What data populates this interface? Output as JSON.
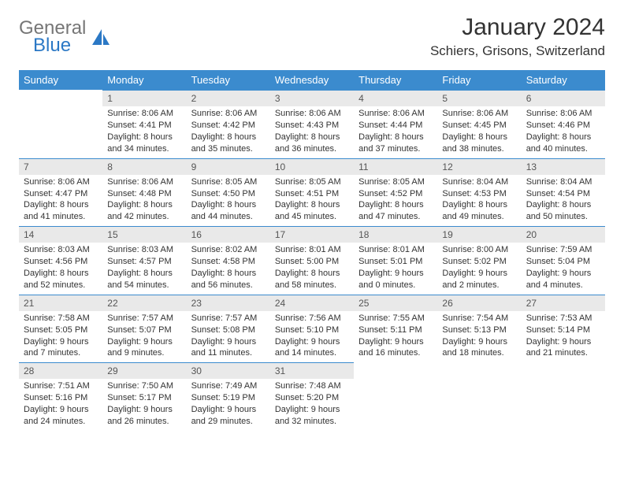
{
  "brand": {
    "word1": "General",
    "word2": "Blue",
    "word1_color": "#767676",
    "word2_color": "#2b78c5",
    "sail_color": "#2b78c5"
  },
  "title": "January 2024",
  "location": "Schiers, Grisons, Switzerland",
  "colors": {
    "header_bg": "#3b8bce",
    "header_text": "#ffffff",
    "daynum_bg": "#e9e9e9",
    "daynum_border": "#3b8bce",
    "body_text": "#333333",
    "page_bg": "#ffffff"
  },
  "fonts": {
    "title_size_pt": 22,
    "location_size_pt": 13,
    "dayheader_size_pt": 10,
    "cell_size_pt": 8
  },
  "day_headers": [
    "Sunday",
    "Monday",
    "Tuesday",
    "Wednesday",
    "Thursday",
    "Friday",
    "Saturday"
  ],
  "weeks": [
    [
      null,
      {
        "n": "1",
        "sunrise": "8:06 AM",
        "sunset": "4:41 PM",
        "daylight": "8 hours and 34 minutes."
      },
      {
        "n": "2",
        "sunrise": "8:06 AM",
        "sunset": "4:42 PM",
        "daylight": "8 hours and 35 minutes."
      },
      {
        "n": "3",
        "sunrise": "8:06 AM",
        "sunset": "4:43 PM",
        "daylight": "8 hours and 36 minutes."
      },
      {
        "n": "4",
        "sunrise": "8:06 AM",
        "sunset": "4:44 PM",
        "daylight": "8 hours and 37 minutes."
      },
      {
        "n": "5",
        "sunrise": "8:06 AM",
        "sunset": "4:45 PM",
        "daylight": "8 hours and 38 minutes."
      },
      {
        "n": "6",
        "sunrise": "8:06 AM",
        "sunset": "4:46 PM",
        "daylight": "8 hours and 40 minutes."
      }
    ],
    [
      {
        "n": "7",
        "sunrise": "8:06 AM",
        "sunset": "4:47 PM",
        "daylight": "8 hours and 41 minutes."
      },
      {
        "n": "8",
        "sunrise": "8:06 AM",
        "sunset": "4:48 PM",
        "daylight": "8 hours and 42 minutes."
      },
      {
        "n": "9",
        "sunrise": "8:05 AM",
        "sunset": "4:50 PM",
        "daylight": "8 hours and 44 minutes."
      },
      {
        "n": "10",
        "sunrise": "8:05 AM",
        "sunset": "4:51 PM",
        "daylight": "8 hours and 45 minutes."
      },
      {
        "n": "11",
        "sunrise": "8:05 AM",
        "sunset": "4:52 PM",
        "daylight": "8 hours and 47 minutes."
      },
      {
        "n": "12",
        "sunrise": "8:04 AM",
        "sunset": "4:53 PM",
        "daylight": "8 hours and 49 minutes."
      },
      {
        "n": "13",
        "sunrise": "8:04 AM",
        "sunset": "4:54 PM",
        "daylight": "8 hours and 50 minutes."
      }
    ],
    [
      {
        "n": "14",
        "sunrise": "8:03 AM",
        "sunset": "4:56 PM",
        "daylight": "8 hours and 52 minutes."
      },
      {
        "n": "15",
        "sunrise": "8:03 AM",
        "sunset": "4:57 PM",
        "daylight": "8 hours and 54 minutes."
      },
      {
        "n": "16",
        "sunrise": "8:02 AM",
        "sunset": "4:58 PM",
        "daylight": "8 hours and 56 minutes."
      },
      {
        "n": "17",
        "sunrise": "8:01 AM",
        "sunset": "5:00 PM",
        "daylight": "8 hours and 58 minutes."
      },
      {
        "n": "18",
        "sunrise": "8:01 AM",
        "sunset": "5:01 PM",
        "daylight": "9 hours and 0 minutes."
      },
      {
        "n": "19",
        "sunrise": "8:00 AM",
        "sunset": "5:02 PM",
        "daylight": "9 hours and 2 minutes."
      },
      {
        "n": "20",
        "sunrise": "7:59 AM",
        "sunset": "5:04 PM",
        "daylight": "9 hours and 4 minutes."
      }
    ],
    [
      {
        "n": "21",
        "sunrise": "7:58 AM",
        "sunset": "5:05 PM",
        "daylight": "9 hours and 7 minutes."
      },
      {
        "n": "22",
        "sunrise": "7:57 AM",
        "sunset": "5:07 PM",
        "daylight": "9 hours and 9 minutes."
      },
      {
        "n": "23",
        "sunrise": "7:57 AM",
        "sunset": "5:08 PM",
        "daylight": "9 hours and 11 minutes."
      },
      {
        "n": "24",
        "sunrise": "7:56 AM",
        "sunset": "5:10 PM",
        "daylight": "9 hours and 14 minutes."
      },
      {
        "n": "25",
        "sunrise": "7:55 AM",
        "sunset": "5:11 PM",
        "daylight": "9 hours and 16 minutes."
      },
      {
        "n": "26",
        "sunrise": "7:54 AM",
        "sunset": "5:13 PM",
        "daylight": "9 hours and 18 minutes."
      },
      {
        "n": "27",
        "sunrise": "7:53 AM",
        "sunset": "5:14 PM",
        "daylight": "9 hours and 21 minutes."
      }
    ],
    [
      {
        "n": "28",
        "sunrise": "7:51 AM",
        "sunset": "5:16 PM",
        "daylight": "9 hours and 24 minutes."
      },
      {
        "n": "29",
        "sunrise": "7:50 AM",
        "sunset": "5:17 PM",
        "daylight": "9 hours and 26 minutes."
      },
      {
        "n": "30",
        "sunrise": "7:49 AM",
        "sunset": "5:19 PM",
        "daylight": "9 hours and 29 minutes."
      },
      {
        "n": "31",
        "sunrise": "7:48 AM",
        "sunset": "5:20 PM",
        "daylight": "9 hours and 32 minutes."
      },
      null,
      null,
      null
    ]
  ],
  "labels": {
    "sunrise": "Sunrise: ",
    "sunset": "Sunset: ",
    "daylight": "Daylight: "
  }
}
